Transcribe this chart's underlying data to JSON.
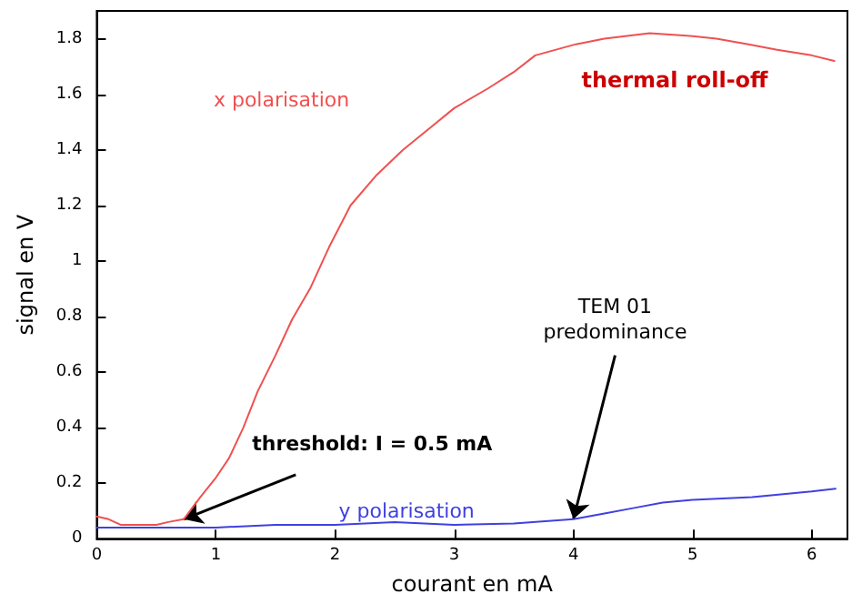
{
  "chart_data": {
    "type": "line",
    "xlabel": "courant en mA",
    "ylabel": "signal en V",
    "xlim": [
      0,
      6.3
    ],
    "ylim": [
      0,
      1.9
    ],
    "xticks": [
      0,
      1,
      2,
      3,
      4,
      5,
      6
    ],
    "yticks": [
      0,
      0.2,
      0.4,
      0.6,
      0.8,
      1,
      1.2,
      1.4,
      1.6,
      1.8
    ],
    "grid": false,
    "marker": "none",
    "line_style": "solid",
    "series": [
      {
        "name": "x polarisation",
        "color": "#f05050",
        "x": [
          0,
          0.1,
          0.2,
          0.3,
          0.4,
          0.5,
          0.6,
          0.73,
          0.87,
          1.0,
          1.11,
          1.23,
          1.35,
          1.5,
          1.64,
          1.79,
          1.95,
          2.13,
          2.35,
          2.57,
          2.8,
          3.0,
          3.28,
          3.5,
          3.68,
          4.02,
          4.26,
          4.64,
          4.98,
          5.2,
          5.47,
          5.71,
          6.0,
          6.19
        ],
        "values": [
          0.08,
          0.07,
          0.05,
          0.05,
          0.05,
          0.05,
          0.06,
          0.07,
          0.15,
          0.22,
          0.29,
          0.4,
          0.53,
          0.66,
          0.79,
          0.9,
          1.05,
          1.2,
          1.31,
          1.4,
          1.48,
          1.55,
          1.62,
          1.68,
          1.74,
          1.78,
          1.8,
          1.82,
          1.81,
          1.8,
          1.78,
          1.76,
          1.74,
          1.72
        ]
      },
      {
        "name": "y polarisation",
        "color": "#4040e0",
        "x": [
          0,
          0.5,
          1,
          1.5,
          2,
          2.5,
          3,
          3.5,
          4,
          4.25,
          4.5,
          4.75,
          5,
          5.5,
          6,
          6.2
        ],
        "values": [
          0.04,
          0.04,
          0.04,
          0.05,
          0.05,
          0.06,
          0.05,
          0.055,
          0.07,
          0.09,
          0.11,
          0.13,
          0.14,
          0.15,
          0.17,
          0.18
        ]
      }
    ],
    "annotations": [
      {
        "text": "threshold: I = 0.5 mA",
        "x": 0.73,
        "y": 0.07
      },
      {
        "text": "TEM 01\npredominance",
        "x": 4.0,
        "y": 0.07
      },
      "thermal roll-off"
    ]
  }
}
